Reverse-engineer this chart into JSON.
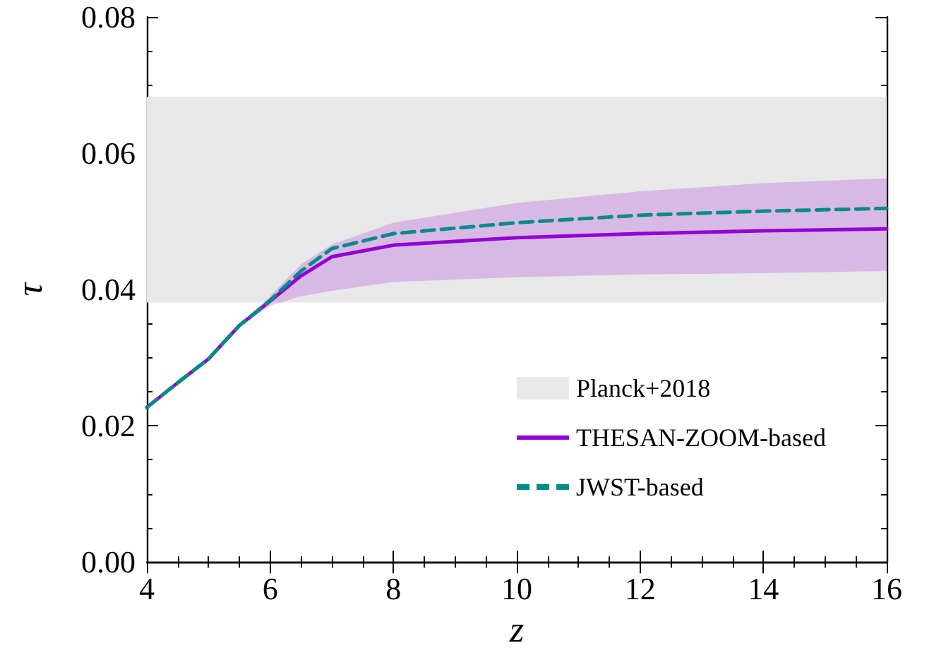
{
  "chart_data": {
    "type": "line",
    "xlabel": "z",
    "ylabel": "τ",
    "x": [
      4,
      4.5,
      5,
      5.5,
      6,
      6.5,
      7,
      8,
      10,
      12,
      14,
      16
    ],
    "series": [
      {
        "name": "THESAN-ZOOM-based",
        "color": "#9400d3",
        "line_style": "solid",
        "values": [
          0.0227,
          0.0263,
          0.0298,
          0.0347,
          0.0383,
          0.042,
          0.0448,
          0.0465,
          0.0476,
          0.0482,
          0.0486,
          0.0489
        ],
        "lower": [
          0.0227,
          0.0263,
          0.0298,
          0.0346,
          0.0376,
          0.039,
          0.0398,
          0.0411,
          0.0418,
          0.0422,
          0.0424,
          0.0427
        ],
        "upper": [
          0.0227,
          0.0263,
          0.0298,
          0.0348,
          0.039,
          0.0437,
          0.0466,
          0.0498,
          0.0527,
          0.0544,
          0.0556,
          0.0563
        ]
      },
      {
        "name": "JWST-based",
        "color": "#008b8b",
        "line_style": "dashed",
        "values": [
          0.0227,
          0.0263,
          0.0298,
          0.0347,
          0.0384,
          0.0427,
          0.046,
          0.0482,
          0.0498,
          0.0509,
          0.0515,
          0.0519
        ]
      }
    ],
    "bands": [
      {
        "axis": "y",
        "from": 0.0381,
        "to": 0.0683,
        "label": "Planck+2018",
        "color": "#e8e8e8"
      }
    ],
    "xlim": [
      4,
      16
    ],
    "xticks": [
      4,
      6,
      8,
      10,
      12,
      14,
      16
    ],
    "ylim": [
      0,
      0.08
    ],
    "yticks": [
      {
        "value": 0,
        "label": "0.00"
      },
      {
        "value": 0.02,
        "label": "0.02"
      },
      {
        "value": 0.04,
        "label": "0.04"
      },
      {
        "value": 0.06,
        "label": "0.06"
      },
      {
        "value": 0.08,
        "label": "0.08"
      }
    ],
    "grid": false,
    "legend": "bottom right",
    "marker": "none"
  }
}
